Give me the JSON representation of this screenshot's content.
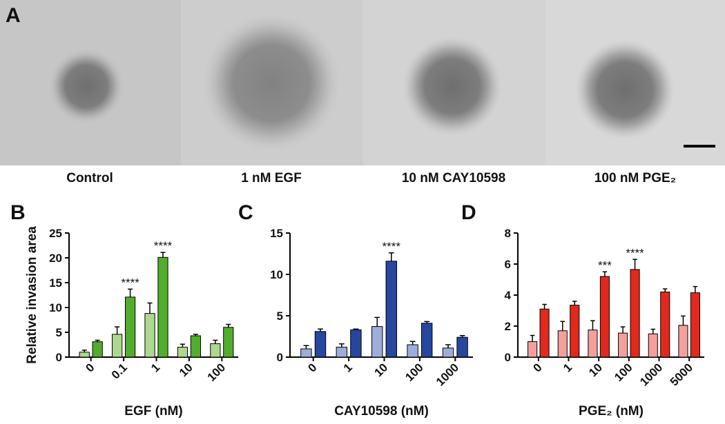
{
  "panel_a": {
    "label": "A",
    "captions": [
      "Control",
      "1 nM EGF",
      "10 nM CAY10598",
      "100 nM PGE₂"
    ]
  },
  "chart_data": [
    {
      "type": "bar",
      "panel_label": "B",
      "y_label": "Relative invasion area",
      "x_label": "EGF (nM)",
      "categories": [
        "0",
        "0.1",
        "1",
        "10",
        "100"
      ],
      "series": [
        {
          "color": "#acd98f",
          "values": [
            1.0,
            4.6,
            8.8,
            2.0,
            2.7
          ],
          "errors": [
            0.4,
            1.5,
            2.1,
            0.6,
            0.7
          ]
        },
        {
          "color": "#52ad2e",
          "values": [
            3.1,
            12.1,
            20.1,
            4.3,
            6.0
          ],
          "errors": [
            0.3,
            1.6,
            1.0,
            0.3,
            0.6
          ]
        }
      ],
      "annotations": [
        null,
        "****",
        "****",
        null,
        null
      ],
      "ylim": [
        0,
        25
      ],
      "yticks": [
        0,
        5,
        10,
        15,
        20,
        25
      ]
    },
    {
      "type": "bar",
      "panel_label": "C",
      "x_label": "CAY10598 (nM)",
      "categories": [
        "0",
        "1",
        "10",
        "100",
        "1000"
      ],
      "series": [
        {
          "color": "#9eaedb",
          "values": [
            1.0,
            1.2,
            3.7,
            1.5,
            1.1
          ],
          "errors": [
            0.4,
            0.4,
            1.1,
            0.4,
            0.4
          ]
        },
        {
          "color": "#27479e",
          "values": [
            3.1,
            3.3,
            11.6,
            4.1,
            2.4
          ],
          "errors": [
            0.3,
            0.1,
            1.0,
            0.2,
            0.2
          ]
        }
      ],
      "annotations": [
        null,
        null,
        "****",
        null,
        null
      ],
      "ylim": [
        0,
        15
      ],
      "yticks": [
        0,
        5,
        10,
        15
      ]
    },
    {
      "type": "bar",
      "panel_label": "D",
      "x_label": "PGE₂ (nM)",
      "categories": [
        "0",
        "1",
        "10",
        "100",
        "1000",
        "5000"
      ],
      "series": [
        {
          "color": "#f3a09d",
          "values": [
            1.0,
            1.7,
            1.75,
            1.55,
            1.5,
            2.05
          ],
          "errors": [
            0.4,
            0.6,
            0.6,
            0.4,
            0.3,
            0.6
          ]
        },
        {
          "color": "#e2291d",
          "values": [
            3.1,
            3.35,
            5.2,
            5.65,
            4.2,
            4.15
          ],
          "errors": [
            0.3,
            0.25,
            0.3,
            0.65,
            0.2,
            0.4
          ]
        }
      ],
      "annotations": [
        null,
        null,
        "***",
        "****",
        null,
        null
      ],
      "ylim": [
        0,
        8
      ],
      "yticks": [
        0,
        2,
        4,
        6,
        8
      ]
    }
  ]
}
